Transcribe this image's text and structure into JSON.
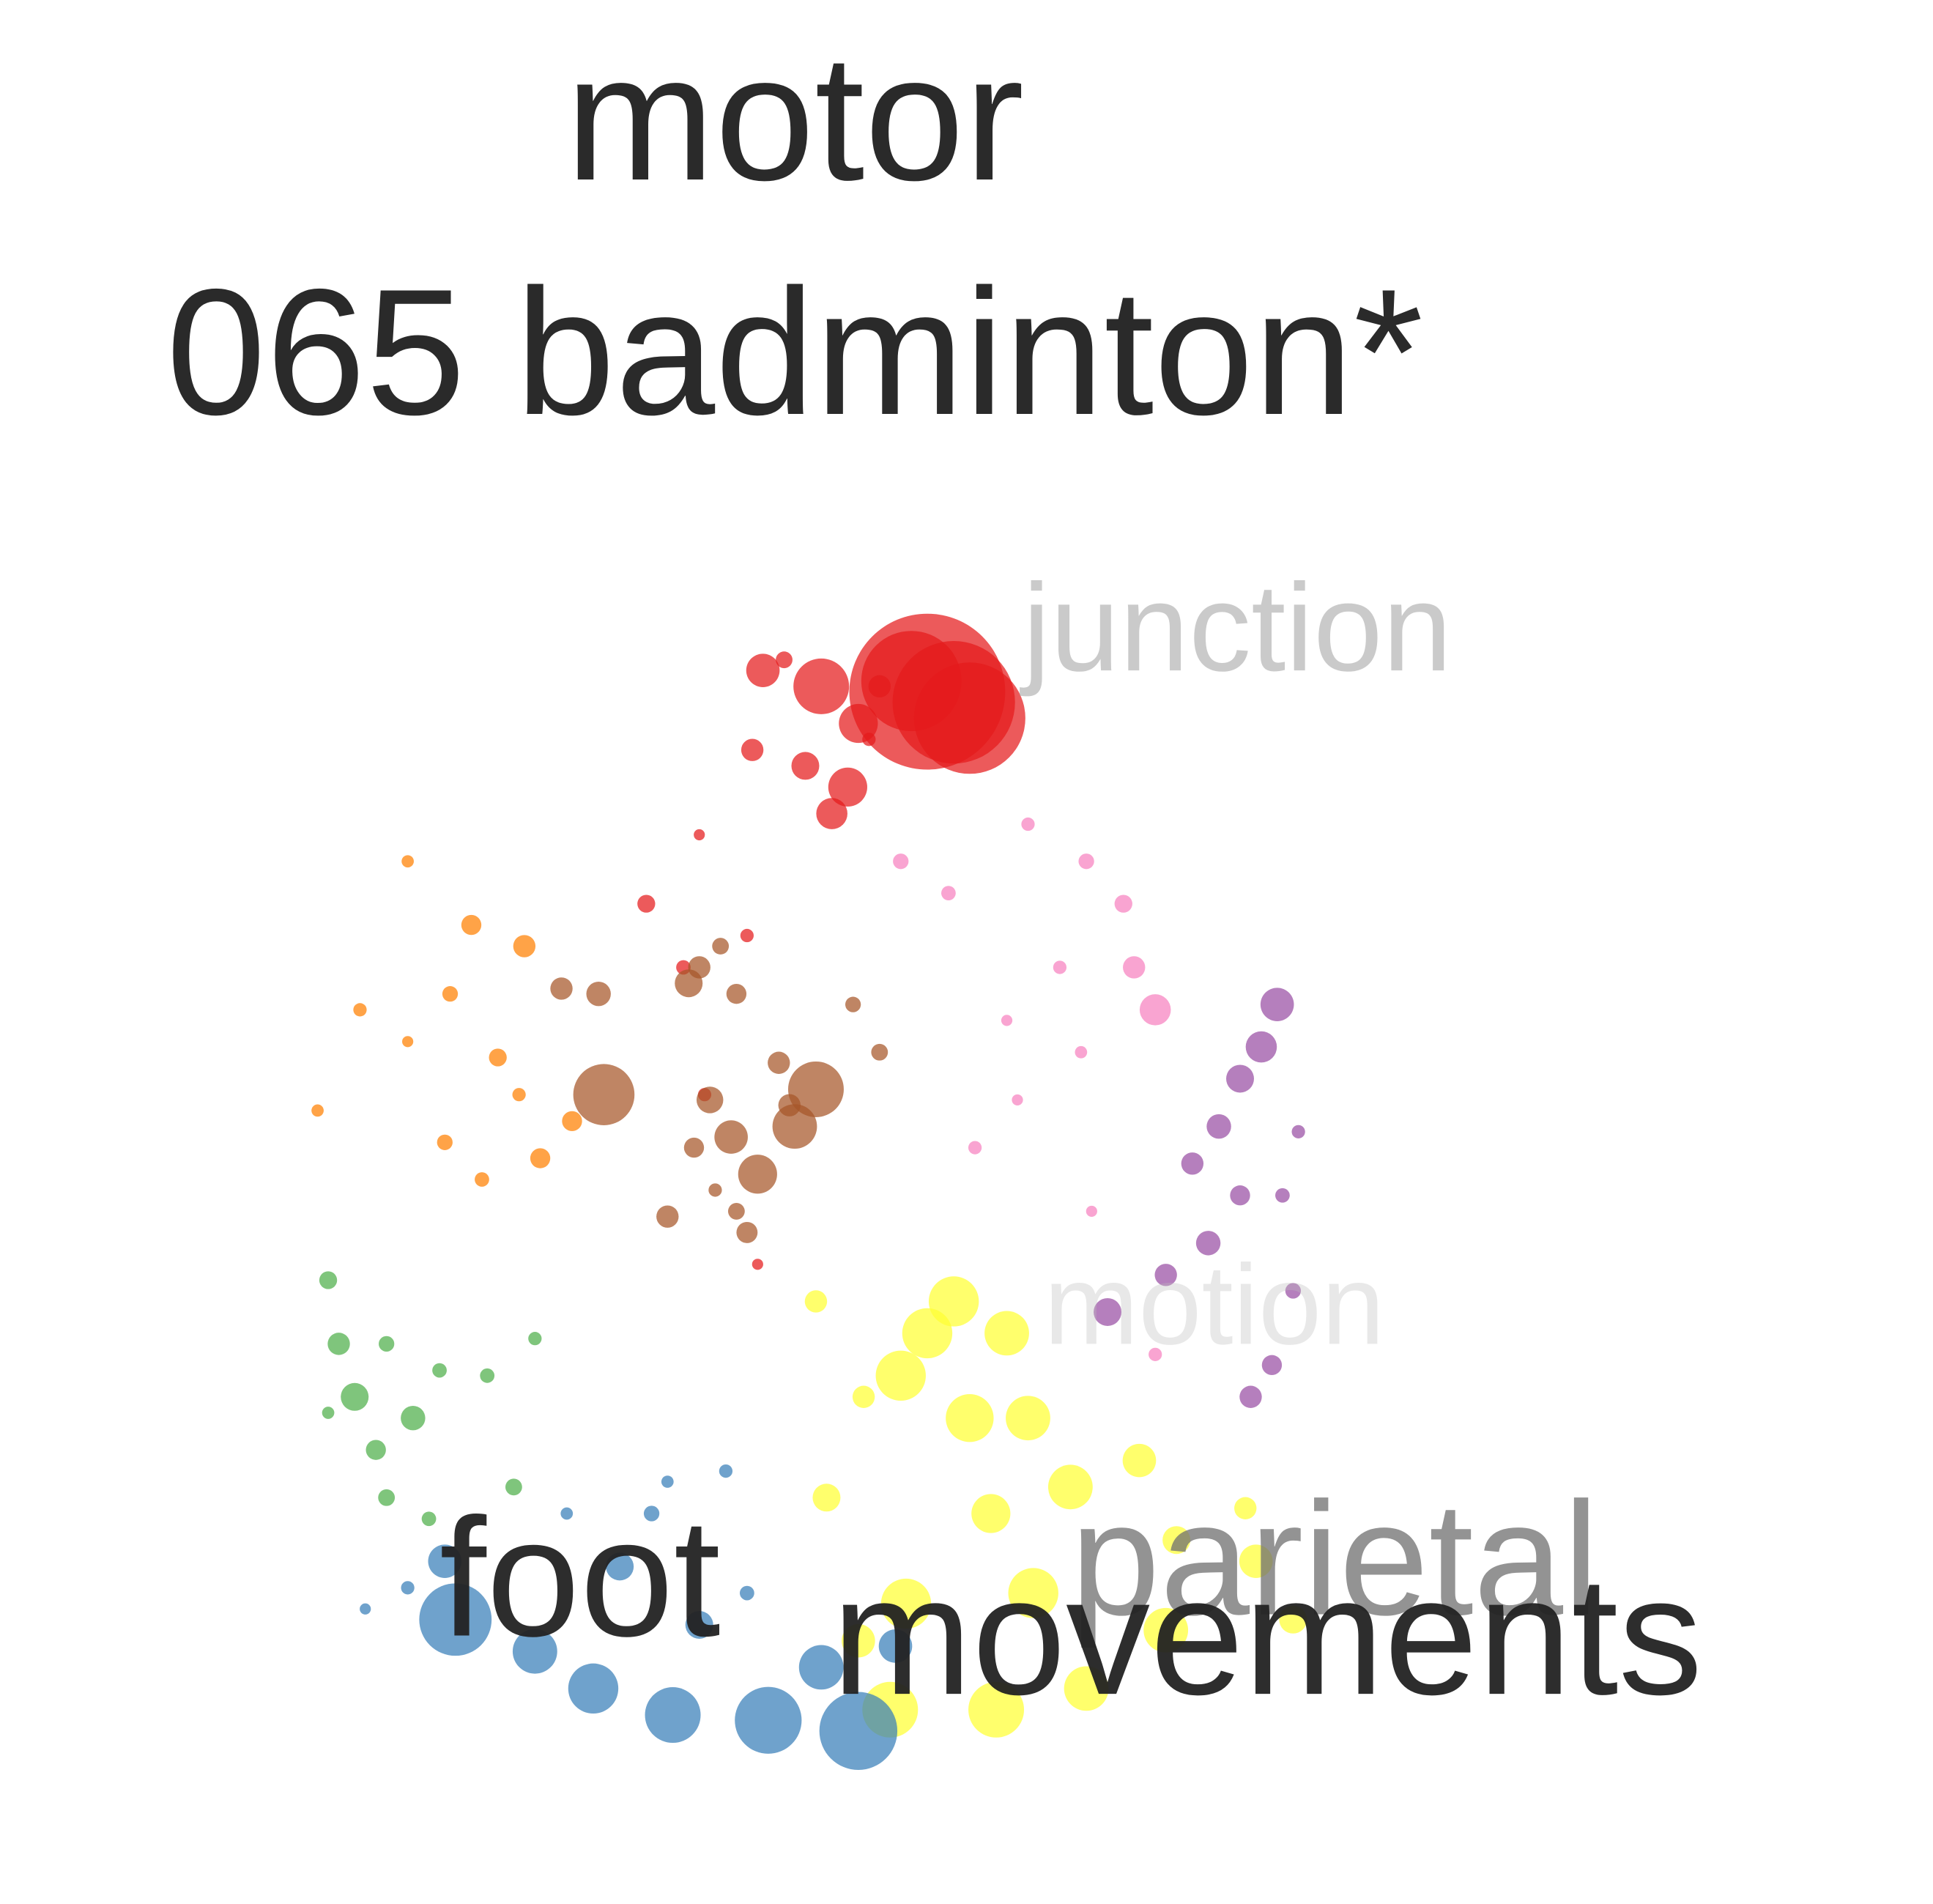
{
  "chart_data": {
    "type": "scatter",
    "subtype": "word-cloud bubble scatter",
    "grid": false,
    "legend": "none",
    "title_lines": [
      "motor",
      "065 badminton*"
    ],
    "xlim": [
      -1.05,
      1.05
    ],
    "ylim": [
      -1.05,
      1.05
    ],
    "colors": {
      "red": "#e41a1c",
      "pink": "#f781bf",
      "orange": "#ff7f00",
      "brown": "#a65628",
      "purple": "#984ea3",
      "green": "#4daf4a",
      "yellow": "#ffff33",
      "blue": "#377eb8"
    },
    "series": [
      {
        "color_key": "red",
        "points": [
          [
            0.25,
            0.92,
            0.14
          ],
          [
            0.3,
            0.9,
            0.11
          ],
          [
            0.22,
            0.94,
            0.09
          ],
          [
            0.33,
            0.87,
            0.1
          ],
          [
            0.05,
            0.93,
            0.05
          ],
          [
            -0.06,
            0.96,
            0.03
          ],
          [
            0.12,
            0.86,
            0.035
          ],
          [
            0.1,
            0.74,
            0.035
          ],
          [
            0.07,
            0.69,
            0.028
          ],
          [
            0.02,
            0.78,
            0.025
          ],
          [
            -0.08,
            0.81,
            0.02
          ],
          [
            -0.28,
            0.52,
            0.016
          ],
          [
            -0.21,
            0.4,
            0.013
          ],
          [
            -0.09,
            0.46,
            0.012
          ],
          [
            -0.17,
            0.16,
            0.012
          ],
          [
            -0.07,
            -0.16,
            0.01
          ],
          [
            0.16,
            0.93,
            0.02
          ],
          [
            -0.02,
            0.98,
            0.015
          ],
          [
            0.14,
            0.83,
            0.012
          ],
          [
            -0.18,
            0.65,
            0.01
          ]
        ]
      },
      {
        "color_key": "pink",
        "points": [
          [
            0.68,
            0.32,
            0.028
          ],
          [
            0.64,
            0.4,
            0.02
          ],
          [
            0.62,
            0.52,
            0.016
          ],
          [
            0.55,
            0.6,
            0.014
          ],
          [
            0.44,
            0.67,
            0.012
          ],
          [
            0.5,
            0.4,
            0.012
          ],
          [
            0.54,
            0.24,
            0.011
          ],
          [
            0.2,
            0.6,
            0.014
          ],
          [
            0.29,
            0.54,
            0.013
          ],
          [
            0.34,
            0.06,
            0.012
          ],
          [
            0.4,
            0.3,
            0.01
          ],
          [
            0.56,
            -0.06,
            0.01
          ],
          [
            0.68,
            -0.33,
            0.012
          ],
          [
            0.42,
            0.15,
            0.01
          ]
        ]
      },
      {
        "color_key": "orange",
        "points": [
          [
            -0.51,
            0.44,
            0.02
          ],
          [
            -0.61,
            0.48,
            0.018
          ],
          [
            -0.65,
            0.35,
            0.014
          ],
          [
            -0.56,
            0.23,
            0.016
          ],
          [
            -0.52,
            0.16,
            0.012
          ],
          [
            -0.82,
            0.32,
            0.012
          ],
          [
            -0.73,
            0.26,
            0.01
          ],
          [
            -0.9,
            0.13,
            0.011
          ],
          [
            -0.66,
            0.07,
            0.014
          ],
          [
            -0.48,
            0.04,
            0.018
          ],
          [
            -0.59,
            0.0,
            0.013
          ],
          [
            -0.73,
            0.6,
            0.011
          ],
          [
            -0.42,
            0.11,
            0.018
          ]
        ]
      },
      {
        "color_key": "brown",
        "points": [
          [
            -0.36,
            0.16,
            0.055
          ],
          [
            0.04,
            0.17,
            0.05
          ],
          [
            0.0,
            0.1,
            0.04
          ],
          [
            -0.07,
            0.01,
            0.035
          ],
          [
            -0.12,
            0.08,
            0.03
          ],
          [
            -0.03,
            0.22,
            0.02
          ],
          [
            -0.2,
            0.37,
            0.025
          ],
          [
            -0.18,
            0.4,
            0.02
          ],
          [
            -0.11,
            0.35,
            0.018
          ],
          [
            -0.14,
            0.44,
            0.015
          ],
          [
            -0.37,
            0.35,
            0.022
          ],
          [
            -0.44,
            0.36,
            0.02
          ],
          [
            -0.16,
            0.15,
            0.024
          ],
          [
            -0.01,
            0.14,
            0.02
          ],
          [
            -0.15,
            -0.02,
            0.012
          ],
          [
            -0.11,
            -0.06,
            0.015
          ],
          [
            -0.24,
            -0.07,
            0.02
          ],
          [
            -0.19,
            0.06,
            0.018
          ],
          [
            -0.09,
            -0.1,
            0.019
          ],
          [
            0.11,
            0.33,
            0.014
          ],
          [
            0.16,
            0.24,
            0.015
          ]
        ]
      },
      {
        "color_key": "purple",
        "points": [
          [
            0.91,
            0.33,
            0.03
          ],
          [
            0.88,
            0.25,
            0.028
          ],
          [
            0.84,
            0.19,
            0.025
          ],
          [
            0.8,
            0.1,
            0.022
          ],
          [
            0.75,
            0.03,
            0.02
          ],
          [
            0.84,
            -0.03,
            0.018
          ],
          [
            0.78,
            -0.12,
            0.022
          ],
          [
            0.7,
            -0.18,
            0.02
          ],
          [
            0.59,
            -0.25,
            0.025
          ],
          [
            0.86,
            -0.41,
            0.02
          ],
          [
            0.9,
            -0.35,
            0.018
          ],
          [
            0.94,
            -0.21,
            0.014
          ],
          [
            0.92,
            -0.03,
            0.013
          ],
          [
            0.95,
            0.09,
            0.012
          ]
        ]
      },
      {
        "color_key": "green",
        "points": [
          [
            -0.86,
            -0.31,
            0.02
          ],
          [
            -0.83,
            -0.41,
            0.025
          ],
          [
            -0.72,
            -0.45,
            0.022
          ],
          [
            -0.79,
            -0.51,
            0.018
          ],
          [
            -0.77,
            -0.6,
            0.015
          ],
          [
            -0.69,
            -0.64,
            0.013
          ],
          [
            -0.88,
            -0.19,
            0.016
          ],
          [
            -0.77,
            -0.31,
            0.014
          ],
          [
            -0.58,
            -0.37,
            0.013
          ],
          [
            -0.49,
            -0.3,
            0.012
          ],
          [
            -0.53,
            -0.58,
            0.015
          ],
          [
            -0.67,
            -0.36,
            0.013
          ],
          [
            -0.88,
            -0.44,
            0.011
          ]
        ]
      },
      {
        "color_key": "yellow",
        "points": [
          [
            0.3,
            -0.23,
            0.045
          ],
          [
            0.25,
            -0.29,
            0.045
          ],
          [
            0.4,
            -0.29,
            0.04
          ],
          [
            0.2,
            -0.37,
            0.045
          ],
          [
            0.33,
            -0.45,
            0.043
          ],
          [
            0.44,
            -0.45,
            0.04
          ],
          [
            0.52,
            -0.58,
            0.04
          ],
          [
            0.37,
            -0.63,
            0.035
          ],
          [
            0.65,
            -0.53,
            0.03
          ],
          [
            0.72,
            -0.68,
            0.025
          ],
          [
            0.87,
            -0.72,
            0.03
          ],
          [
            0.94,
            -0.83,
            0.025
          ],
          [
            0.45,
            -0.78,
            0.045
          ],
          [
            0.55,
            -0.96,
            0.04
          ],
          [
            0.7,
            -0.85,
            0.04
          ],
          [
            0.21,
            -0.8,
            0.045
          ],
          [
            0.06,
            -0.6,
            0.025
          ],
          [
            0.13,
            -0.41,
            0.02
          ],
          [
            0.04,
            -0.23,
            0.02
          ],
          [
            0.12,
            -0.87,
            0.03
          ],
          [
            0.18,
            -1.0,
            0.05
          ],
          [
            0.38,
            -1.0,
            0.05
          ],
          [
            0.85,
            -0.62,
            0.02
          ]
        ]
      },
      {
        "color_key": "blue",
        "points": [
          [
            0.12,
            -1.04,
            0.07
          ],
          [
            -0.05,
            -1.02,
            0.06
          ],
          [
            -0.23,
            -1.01,
            0.05
          ],
          [
            -0.38,
            -0.96,
            0.045
          ],
          [
            -0.49,
            -0.89,
            0.04
          ],
          [
            -0.66,
            -0.72,
            0.03
          ],
          [
            -0.64,
            -0.83,
            0.065
          ],
          [
            0.05,
            -0.92,
            0.04
          ],
          [
            0.19,
            -0.88,
            0.03
          ],
          [
            -0.33,
            -0.73,
            0.025
          ],
          [
            -0.18,
            -0.84,
            0.025
          ],
          [
            -0.27,
            -0.63,
            0.014
          ],
          [
            -0.09,
            -0.78,
            0.013
          ],
          [
            -0.43,
            -0.63,
            0.011
          ],
          [
            -0.81,
            -0.81,
            0.01
          ],
          [
            -0.73,
            -0.77,
            0.012
          ],
          [
            -0.13,
            -0.55,
            0.012
          ],
          [
            -0.24,
            -0.57,
            0.011
          ]
        ]
      }
    ],
    "words": [
      {
        "text": "junction",
        "size": 1.7,
        "color": "#9e9e9e",
        "opacity": 0.55,
        "x": 0.43,
        "y": 0.96
      },
      {
        "text": "motion",
        "size": 1.55,
        "color": "#bcbcbc",
        "opacity": 0.35,
        "x": 0.47,
        "y": -0.31
      },
      {
        "text": "parietal",
        "size": 2.2,
        "color": "#6f6f6f",
        "opacity": 0.75,
        "x": 0.52,
        "y": -0.82
      },
      {
        "text": "foot",
        "size": 2.3,
        "color": "#222222",
        "opacity": 0.95,
        "x": -0.67,
        "y": -0.86
      },
      {
        "text": "movements",
        "size": 2.3,
        "color": "#222222",
        "opacity": 0.95,
        "x": 0.07,
        "y": -0.97
      }
    ]
  }
}
